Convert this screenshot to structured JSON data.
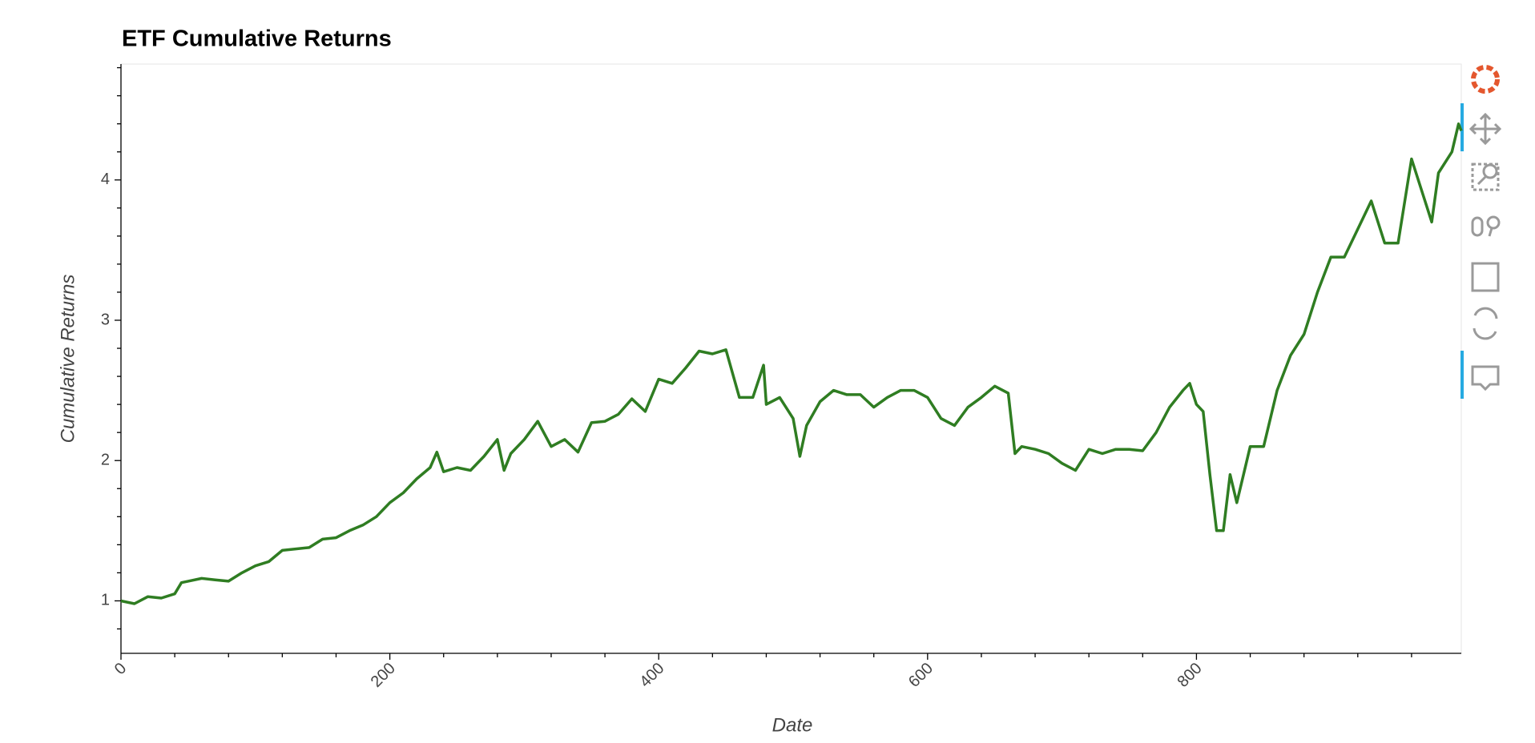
{
  "chart_data": {
    "type": "line",
    "title": "ETF Cumulative Returns",
    "x_label": "Date",
    "y_label": "Cumulative Returns",
    "x": [
      0,
      10,
      20,
      30,
      40,
      45,
      50,
      60,
      70,
      80,
      90,
      100,
      110,
      120,
      130,
      140,
      150,
      160,
      170,
      180,
      190,
      200,
      210,
      220,
      230,
      235,
      240,
      250,
      260,
      270,
      280,
      285,
      290,
      300,
      310,
      320,
      330,
      340,
      350,
      360,
      370,
      380,
      390,
      400,
      410,
      420,
      430,
      440,
      450,
      460,
      470,
      478,
      480,
      490,
      500,
      505,
      510,
      520,
      530,
      540,
      550,
      560,
      570,
      580,
      590,
      600,
      610,
      620,
      630,
      640,
      650,
      660,
      665,
      670,
      680,
      690,
      700,
      710,
      720,
      730,
      740,
      750,
      760,
      770,
      780,
      790,
      795,
      800,
      805,
      810,
      815,
      820,
      825,
      830,
      835,
      840,
      850,
      860,
      870,
      880,
      890,
      900,
      910,
      920,
      930,
      940,
      950,
      960,
      970,
      975,
      980,
      990,
      995,
      997
    ],
    "series": [
      {
        "name": "Cumulative Returns",
        "color": "#2f7d22",
        "values": [
          1.0,
          0.98,
          1.03,
          1.02,
          1.05,
          1.13,
          1.14,
          1.16,
          1.15,
          1.14,
          1.2,
          1.25,
          1.28,
          1.36,
          1.37,
          1.38,
          1.44,
          1.45,
          1.5,
          1.54,
          1.6,
          1.7,
          1.77,
          1.87,
          1.95,
          2.06,
          1.92,
          1.95,
          1.93,
          2.03,
          2.15,
          1.93,
          2.05,
          2.15,
          2.28,
          2.1,
          2.15,
          2.06,
          2.27,
          2.28,
          2.33,
          2.44,
          2.35,
          2.58,
          2.55,
          2.66,
          2.78,
          2.76,
          2.79,
          2.45,
          2.45,
          2.68,
          2.4,
          2.45,
          2.3,
          2.03,
          2.25,
          2.42,
          2.5,
          2.47,
          2.47,
          2.38,
          2.45,
          2.5,
          2.5,
          2.45,
          2.3,
          2.25,
          2.38,
          2.45,
          2.53,
          2.48,
          2.05,
          2.1,
          2.08,
          2.05,
          1.98,
          1.93,
          2.08,
          2.05,
          2.08,
          2.08,
          2.07,
          2.2,
          2.38,
          2.5,
          2.55,
          2.4,
          2.35,
          1.9,
          1.5,
          1.5,
          1.9,
          1.7,
          1.9,
          2.1,
          2.1,
          2.5,
          2.75,
          2.9,
          3.2,
          3.45,
          3.45,
          3.65,
          3.85,
          3.55,
          3.55,
          4.15,
          3.85,
          3.7,
          4.05,
          4.2,
          4.4,
          4.35
        ]
      }
    ],
    "xlim": [
      0,
      997
    ],
    "ylim": [
      0.626,
      4.826
    ],
    "xticks": [
      0,
      200,
      400,
      600,
      800
    ],
    "yticks": [
      1,
      2,
      3,
      4
    ],
    "xminorticks": [
      40,
      80,
      120,
      160,
      240,
      280,
      320,
      360,
      440,
      480,
      520,
      560,
      640,
      680,
      720,
      760,
      840,
      880,
      920,
      960
    ],
    "yminorticks": [
      0.8,
      1.2,
      1.4,
      1.6,
      1.8,
      2.2,
      2.4,
      2.6,
      2.8,
      3.2,
      3.4,
      3.6,
      3.8,
      4.2,
      4.4,
      4.6,
      4.8
    ]
  }
}
